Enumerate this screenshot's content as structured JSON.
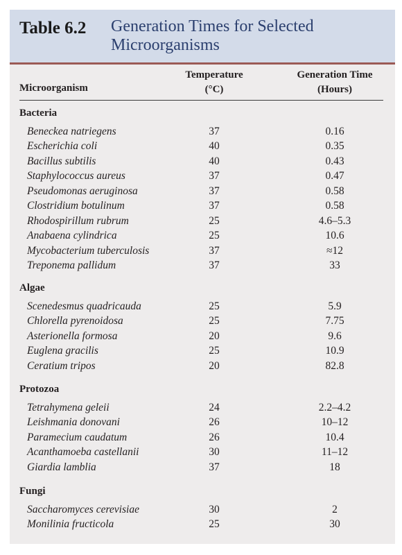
{
  "table": {
    "label": "Table 6.2",
    "title_line1": "Generation Times for Selected",
    "title_line2": "Microorganisms"
  },
  "headers": {
    "organism": "Microorganism",
    "temp_line1": "Temperature",
    "temp_line2": "(°C)",
    "gen_line1": "Generation Time",
    "gen_line2": "(Hours)"
  },
  "groups": [
    {
      "name": "Bacteria",
      "rows": [
        {
          "organism": "Beneckea natriegens",
          "temp": "37",
          "gen": "0.16"
        },
        {
          "organism": "Escherichia coli",
          "temp": "40",
          "gen": "0.35"
        },
        {
          "organism": "Bacillus subtilis",
          "temp": "40",
          "gen": "0.43"
        },
        {
          "organism": "Staphylococcus aureus",
          "temp": "37",
          "gen": "0.47"
        },
        {
          "organism": "Pseudomonas aeruginosa",
          "temp": "37",
          "gen": "0.58"
        },
        {
          "organism": "Clostridium botulinum",
          "temp": "37",
          "gen": "0.58"
        },
        {
          "organism": "Rhodospirillum rubrum",
          "temp": "25",
          "gen": "4.6–5.3"
        },
        {
          "organism": "Anabaena cylindrica",
          "temp": "25",
          "gen": "10.6"
        },
        {
          "organism": "Mycobacterium tuberculosis",
          "temp": "37",
          "gen": "≈12"
        },
        {
          "organism": "Treponema pallidum",
          "temp": "37",
          "gen": "33"
        }
      ]
    },
    {
      "name": "Algae",
      "rows": [
        {
          "organism": "Scenedesmus quadricauda",
          "temp": "25",
          "gen": "5.9"
        },
        {
          "organism": "Chlorella pyrenoidosa",
          "temp": "25",
          "gen": "7.75"
        },
        {
          "organism": "Asterionella formosa",
          "temp": "20",
          "gen": "9.6"
        },
        {
          "organism": "Euglena gracilis",
          "temp": "25",
          "gen": "10.9"
        },
        {
          "organism": "Ceratium tripos",
          "temp": "20",
          "gen": "82.8"
        }
      ]
    },
    {
      "name": "Protozoa",
      "rows": [
        {
          "organism": "Tetrahymena geleii",
          "temp": "24",
          "gen": "2.2–4.2"
        },
        {
          "organism": "Leishmania donovani",
          "temp": "26",
          "gen": "10–12"
        },
        {
          "organism": "Paramecium caudatum",
          "temp": "26",
          "gen": "10.4"
        },
        {
          "organism": "Acanthamoeba castellanii",
          "temp": "30",
          "gen": "11–12"
        },
        {
          "organism": "Giardia lamblia",
          "temp": "37",
          "gen": "18"
        }
      ]
    },
    {
      "name": "Fungi",
      "rows": [
        {
          "organism": "Saccharomyces cerevisiae",
          "temp": "30",
          "gen": "2"
        },
        {
          "organism": "Monilinia fructicola",
          "temp": "25",
          "gen": "30"
        }
      ]
    }
  ]
}
